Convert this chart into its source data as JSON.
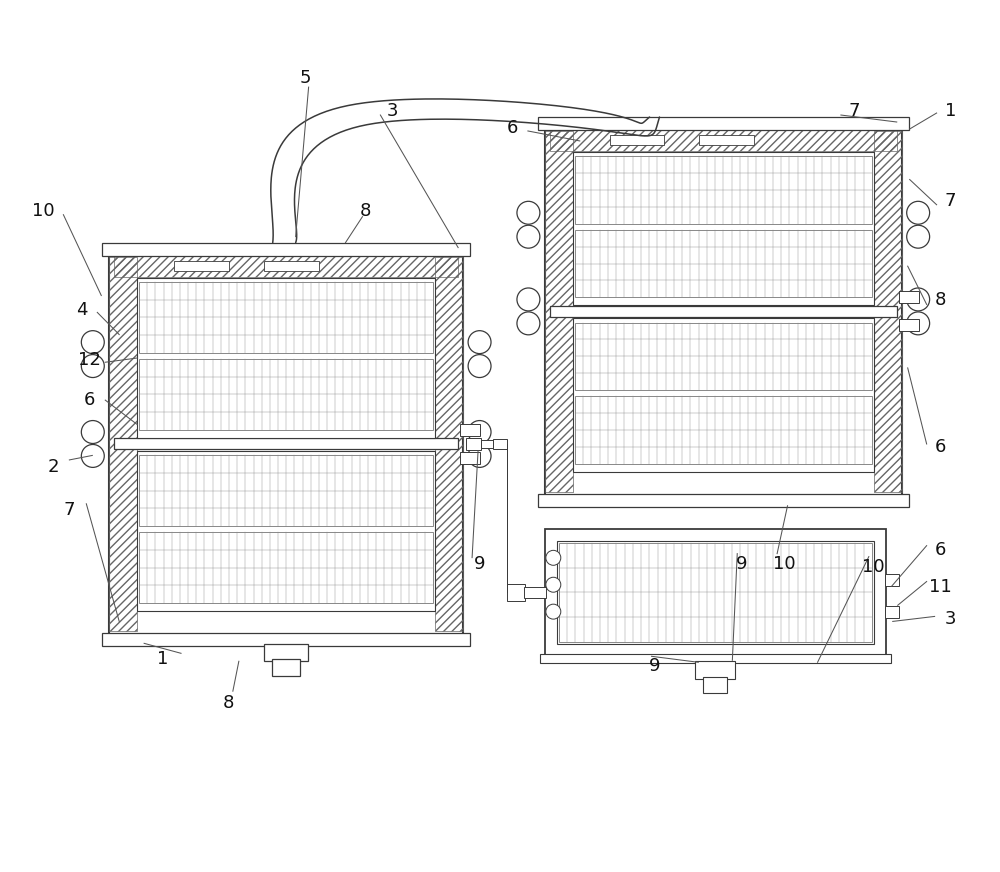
{
  "bg_color": "#ffffff",
  "line_color": "#3a3a3a",
  "lc2": "#555555",
  "fig_width": 10.0,
  "fig_height": 8.72,
  "label_fs": 13,
  "label_color": "#111111",
  "leader_color": "#555555"
}
